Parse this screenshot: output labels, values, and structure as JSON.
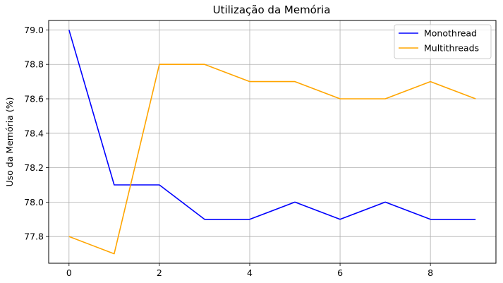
{
  "chart_data": {
    "type": "line",
    "title": "Utilização da Memória",
    "xlabel": "",
    "ylabel": "Uso da Memória (%)",
    "x": [
      0,
      1,
      2,
      3,
      4,
      5,
      6,
      7,
      8,
      9
    ],
    "xticks": [
      "0",
      "2",
      "4",
      "6",
      "8"
    ],
    "yticks": [
      "77.8",
      "78.0",
      "78.2",
      "78.4",
      "78.6",
      "78.8",
      "79.0"
    ],
    "xlim": [
      -0.45,
      9.45
    ],
    "ylim": [
      77.645,
      79.055
    ],
    "grid": true,
    "legend_position": "top-right",
    "series": [
      {
        "name": "Monothread",
        "color": "#0000ff",
        "values": [
          79.0,
          78.1,
          78.1,
          77.9,
          77.9,
          78.0,
          77.9,
          78.0,
          77.9,
          77.9
        ]
      },
      {
        "name": "Multithreads",
        "color": "#ffa500",
        "values": [
          77.8,
          77.7,
          78.8,
          78.8,
          78.7,
          78.7,
          78.6,
          78.6,
          78.7,
          78.6
        ]
      }
    ]
  }
}
